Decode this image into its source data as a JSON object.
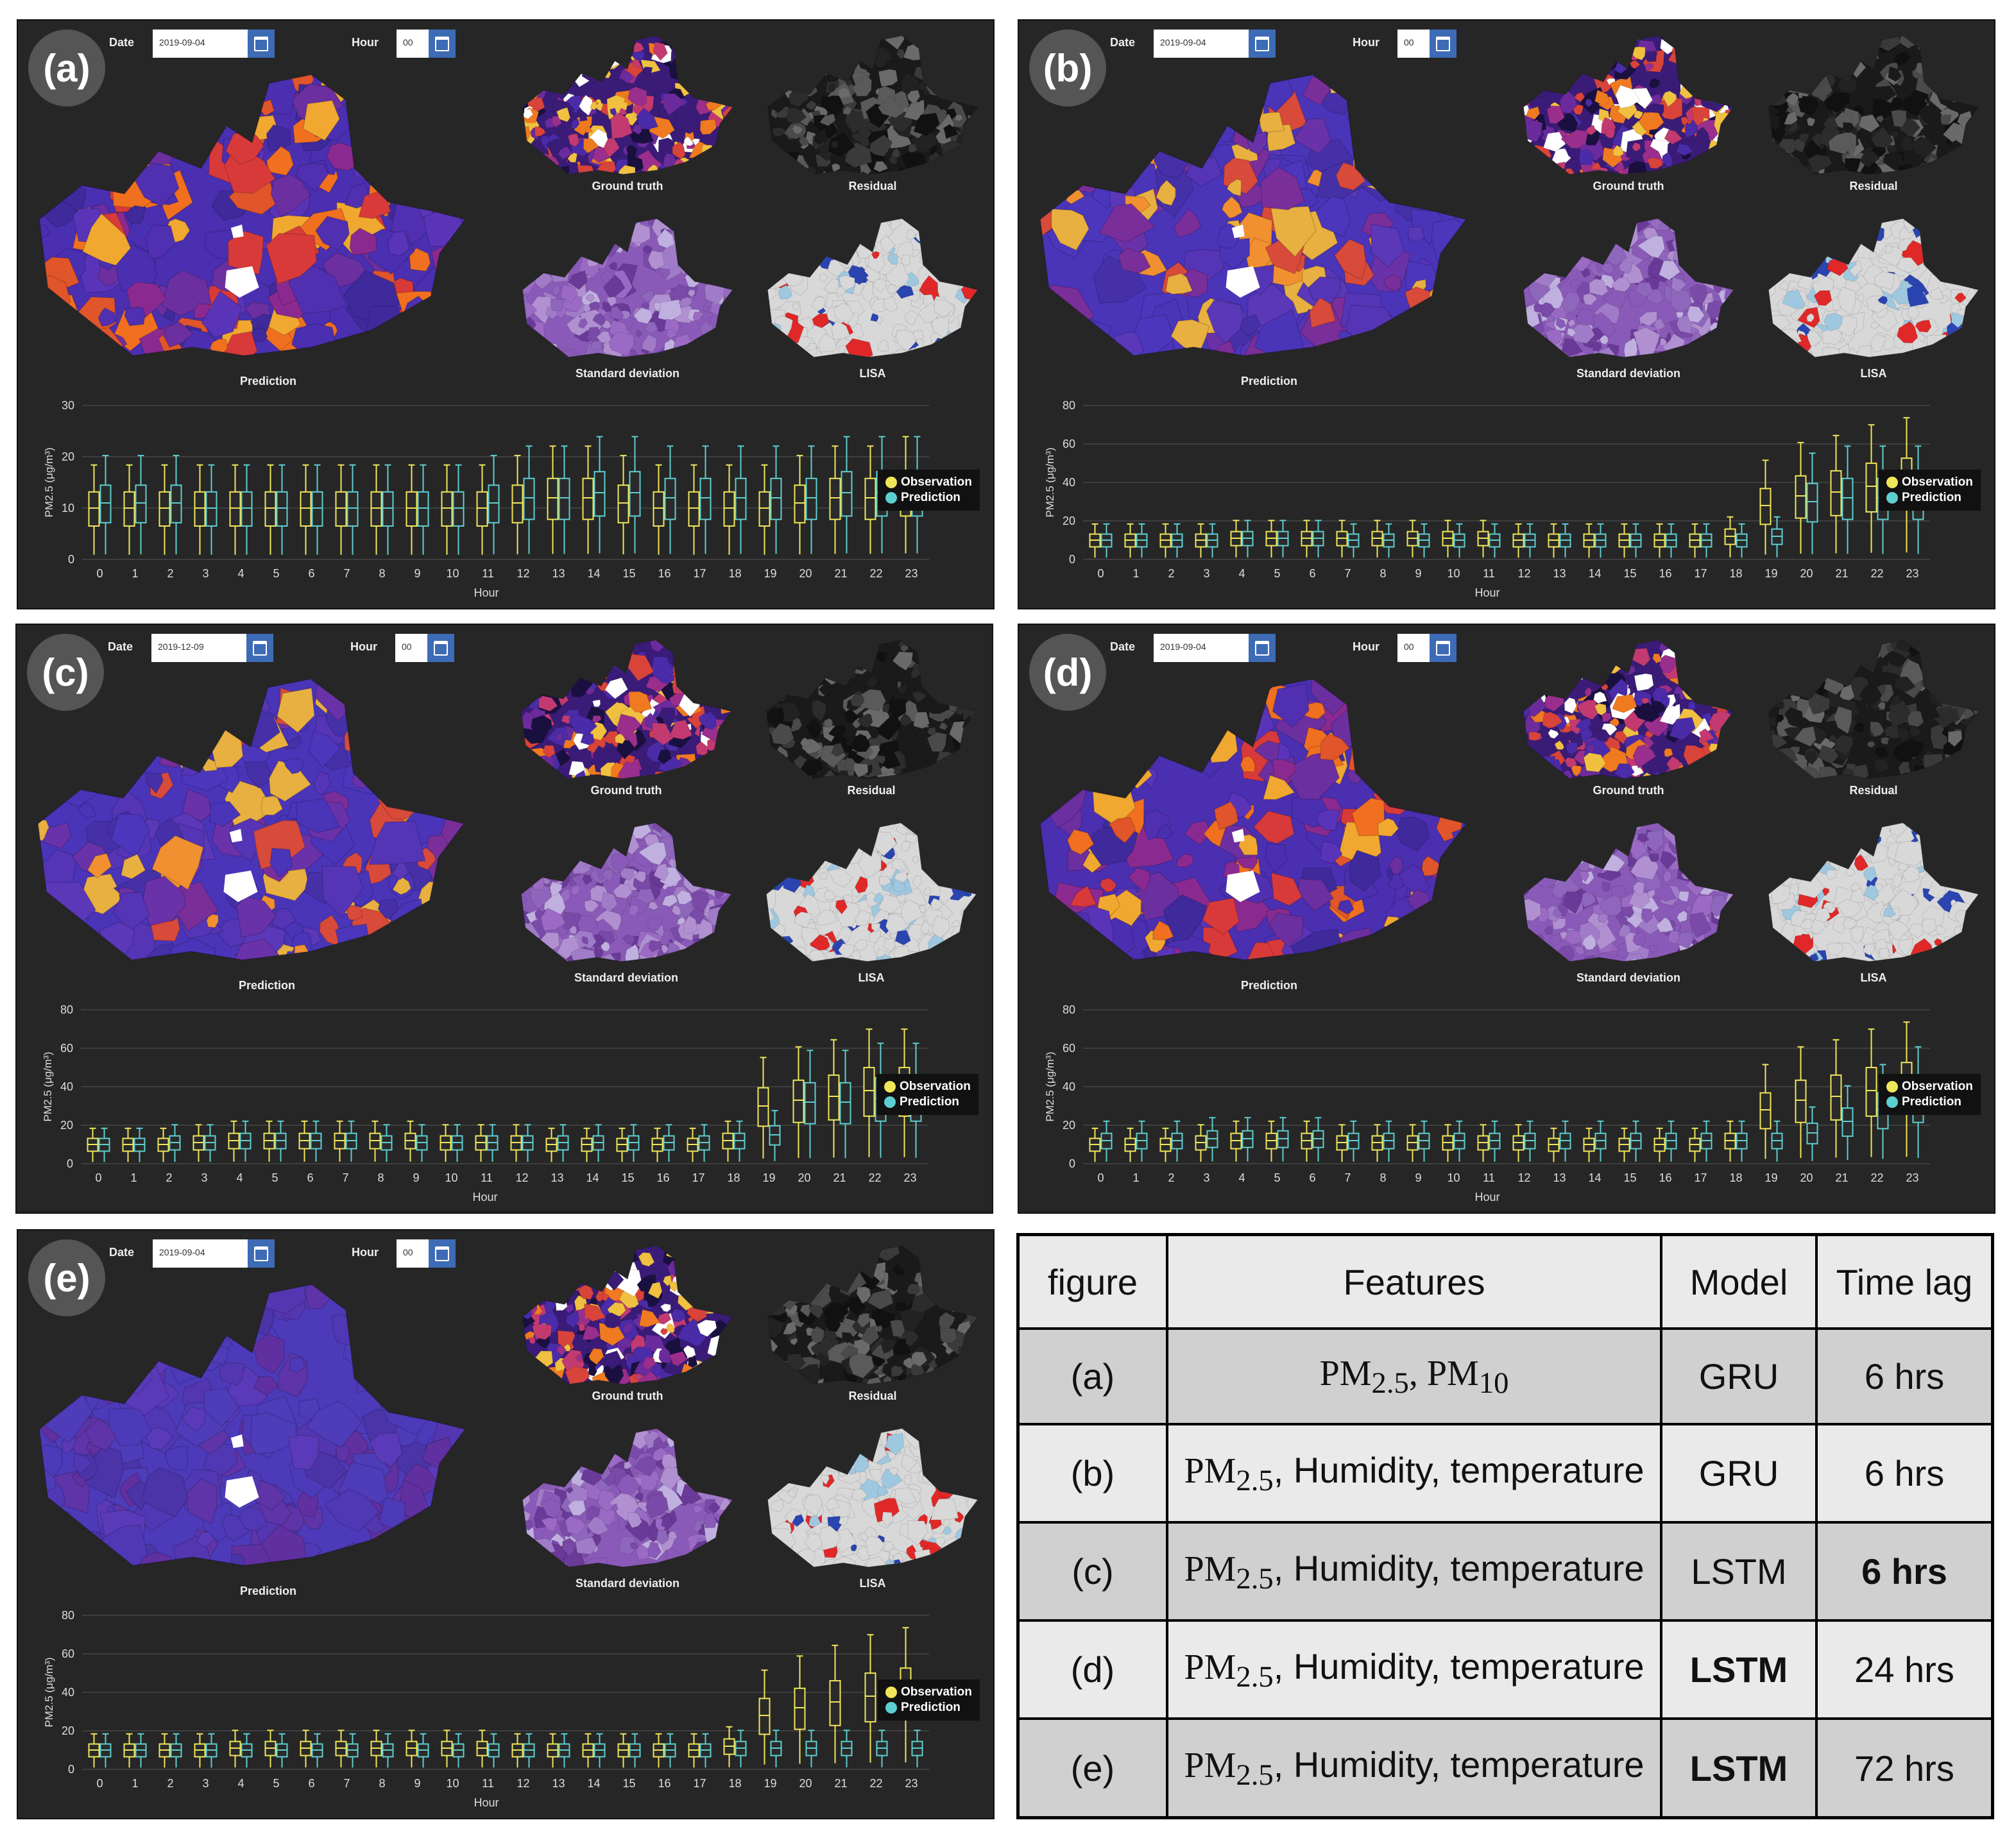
{
  "controls": {
    "date_label": "Date",
    "hour_label": "Hour"
  },
  "map_captions": {
    "main": "Prediction",
    "ground_truth": "Ground truth",
    "residual": "Residual",
    "std": "Standard deviation",
    "lisa": "LISA"
  },
  "legend": {
    "observation": "Observation",
    "prediction": "Prediction",
    "observation_color": "#f0e65a",
    "prediction_color": "#5ecfd0"
  },
  "axis": {
    "xlabel": "Hour",
    "ylabel": "PM2.5 (μg/m³)"
  },
  "panels": [
    {
      "id": "a",
      "badge": "(a)",
      "date": "2019-09-04",
      "hour": "00"
    },
    {
      "id": "b",
      "badge": "(b)",
      "date": "2019-09-04",
      "hour": "00"
    },
    {
      "id": "c",
      "badge": "(c)",
      "date": "2019-12-09",
      "hour": "00"
    },
    {
      "id": "d",
      "badge": "(d)",
      "date": "2019-09-04",
      "hour": "00"
    },
    {
      "id": "e",
      "badge": "(e)",
      "date": "2019-09-04",
      "hour": "00"
    }
  ],
  "chart_data": [
    {
      "panel": "a",
      "type": "box",
      "xlabel": "Hour",
      "ylabel": "PM2.5 (μg/m³)",
      "ylim": [
        0,
        30
      ],
      "yticks": [
        0,
        10,
        20,
        30
      ],
      "categories": [
        "0",
        "1",
        "2",
        "3",
        "4",
        "5",
        "6",
        "7",
        "8",
        "9",
        "10",
        "11",
        "12",
        "13",
        "14",
        "15",
        "16",
        "17",
        "18",
        "19",
        "20",
        "21",
        "22",
        "23"
      ],
      "series": [
        {
          "name": "Observation",
          "median": [
            10,
            10,
            10,
            10,
            10,
            10,
            10,
            10,
            10,
            10,
            10,
            10,
            11,
            12,
            12,
            11,
            10,
            10,
            10,
            10,
            11,
            12,
            12,
            13
          ]
        },
        {
          "name": "Prediction",
          "median": [
            11,
            11,
            11,
            10,
            10,
            10,
            10,
            10,
            10,
            10,
            10,
            11,
            12,
            12,
            13,
            13,
            12,
            12,
            12,
            12,
            12,
            13,
            13,
            13
          ]
        }
      ]
    },
    {
      "panel": "b",
      "type": "box",
      "xlabel": "Hour",
      "ylabel": "PM2.5 (μg/m³)",
      "ylim": [
        0,
        80
      ],
      "yticks": [
        0,
        20,
        40,
        60,
        80
      ],
      "categories": [
        "0",
        "1",
        "2",
        "3",
        "4",
        "5",
        "6",
        "7",
        "8",
        "9",
        "10",
        "11",
        "12",
        "13",
        "14",
        "15",
        "16",
        "17",
        "18",
        "19",
        "20",
        "21",
        "22",
        "23"
      ],
      "series": [
        {
          "name": "Observation",
          "median": [
            10,
            10,
            10,
            10,
            11,
            11,
            11,
            11,
            11,
            11,
            11,
            11,
            10,
            10,
            10,
            10,
            10,
            10,
            12,
            28,
            33,
            35,
            38,
            40
          ]
        },
        {
          "name": "Prediction",
          "median": [
            10,
            10,
            10,
            10,
            11,
            11,
            11,
            10,
            10,
            10,
            10,
            10,
            10,
            10,
            10,
            10,
            10,
            10,
            10,
            12,
            30,
            32,
            32,
            32
          ]
        }
      ]
    },
    {
      "panel": "c",
      "type": "box",
      "xlabel": "Hour",
      "ylabel": "PM2.5 (μg/m³)",
      "ylim": [
        0,
        80
      ],
      "yticks": [
        0,
        20,
        40,
        60,
        80
      ],
      "categories": [
        "0",
        "1",
        "2",
        "3",
        "4",
        "5",
        "6",
        "7",
        "8",
        "9",
        "10",
        "11",
        "12",
        "13",
        "14",
        "15",
        "16",
        "17",
        "18",
        "19",
        "20",
        "21",
        "22",
        "23"
      ],
      "series": [
        {
          "name": "Observation",
          "median": [
            10,
            10,
            10,
            11,
            12,
            12,
            12,
            12,
            12,
            12,
            11,
            11,
            11,
            10,
            10,
            10,
            10,
            10,
            12,
            30,
            33,
            35,
            38,
            38
          ]
        },
        {
          "name": "Prediction",
          "median": [
            10,
            10,
            11,
            11,
            12,
            12,
            12,
            12,
            11,
            11,
            11,
            11,
            11,
            11,
            11,
            11,
            11,
            11,
            12,
            15,
            32,
            32,
            34,
            34
          ]
        }
      ]
    },
    {
      "panel": "d",
      "type": "box",
      "xlabel": "Hour",
      "ylabel": "PM2.5 (μg/m³)",
      "ylim": [
        0,
        80
      ],
      "yticks": [
        0,
        20,
        40,
        60,
        80
      ],
      "categories": [
        "0",
        "1",
        "2",
        "3",
        "4",
        "5",
        "6",
        "7",
        "8",
        "9",
        "10",
        "11",
        "12",
        "13",
        "14",
        "15",
        "16",
        "17",
        "18",
        "19",
        "20",
        "21",
        "22",
        "23"
      ],
      "series": [
        {
          "name": "Observation",
          "median": [
            10,
            10,
            10,
            11,
            12,
            12,
            12,
            11,
            11,
            11,
            11,
            11,
            11,
            10,
            10,
            10,
            10,
            10,
            12,
            28,
            33,
            35,
            38,
            40
          ]
        },
        {
          "name": "Prediction",
          "median": [
            12,
            12,
            12,
            13,
            13,
            13,
            13,
            12,
            12,
            12,
            12,
            12,
            12,
            12,
            12,
            12,
            12,
            12,
            12,
            12,
            16,
            22,
            28,
            33
          ]
        }
      ]
    },
    {
      "panel": "e",
      "type": "box",
      "xlabel": "Hour",
      "ylabel": "PM2.5 (μg/m³)",
      "ylim": [
        0,
        80
      ],
      "yticks": [
        0,
        20,
        40,
        60,
        80
      ],
      "categories": [
        "0",
        "1",
        "2",
        "3",
        "4",
        "5",
        "6",
        "7",
        "8",
        "9",
        "10",
        "11",
        "12",
        "13",
        "14",
        "15",
        "16",
        "17",
        "18",
        "19",
        "20",
        "21",
        "22",
        "23"
      ],
      "series": [
        {
          "name": "Observation",
          "median": [
            10,
            10,
            10,
            10,
            11,
            11,
            11,
            11,
            11,
            11,
            11,
            11,
            10,
            10,
            10,
            10,
            10,
            10,
            12,
            28,
            32,
            35,
            38,
            40
          ]
        },
        {
          "name": "Prediction",
          "median": [
            10,
            10,
            10,
            10,
            10,
            10,
            10,
            10,
            10,
            10,
            10,
            10,
            10,
            10,
            10,
            10,
            10,
            10,
            11,
            11,
            11,
            11,
            11,
            11
          ]
        }
      ]
    }
  ],
  "table": {
    "headers": [
      "figure",
      "Features",
      "Model",
      "Time lag"
    ],
    "rows": [
      {
        "figure": "(a)",
        "pm": "PM",
        "pm_sub": "2.5",
        "rest": ", PM",
        "rest_sub": "10",
        "extra": "",
        "model": "GRU",
        "lag": "6 hrs"
      },
      {
        "figure": "(b)",
        "pm": "PM",
        "pm_sub": "2.5",
        "rest": ", Humidity, temperature",
        "rest_sub": "",
        "extra": "",
        "model": "GRU",
        "lag": "6 hrs"
      },
      {
        "figure": "(c)",
        "pm": "PM",
        "pm_sub": "2.5",
        "rest": ", Humidity, temperature",
        "rest_sub": "",
        "extra": "",
        "model": "LSTM",
        "lag": "6 hrs"
      },
      {
        "figure": "(d)",
        "pm": "PM",
        "pm_sub": "2.5",
        "rest": ", Humidity, temperature",
        "rest_sub": "",
        "extra": "",
        "model": "LSTM",
        "lag": "24 hrs"
      },
      {
        "figure": "(e)",
        "pm": "PM",
        "pm_sub": "2.5",
        "rest": ", Humidity, temperature",
        "rest_sub": "",
        "extra": "",
        "model": "LSTM",
        "lag": "72 hrs"
      }
    ]
  }
}
